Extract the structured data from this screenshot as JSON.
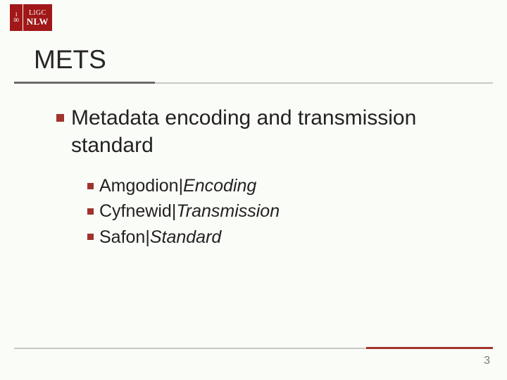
{
  "logo": {
    "left_top": "1",
    "left_bottom": "00",
    "right_top": "LlGC",
    "right_bottom": "NLW"
  },
  "heading": "METS",
  "level1": {
    "text": "Metadata encoding and transmission standard"
  },
  "level2": [
    {
      "welsh": "Amgodion",
      "sep": " | ",
      "english": "Encoding"
    },
    {
      "welsh": "Cyfnewid",
      "sep": " | ",
      "english": "Transmission"
    },
    {
      "welsh": "Safon",
      "sep": " | ",
      "english": "Standard"
    }
  ],
  "page_number": "3",
  "colors": {
    "bullet": "#a0342c",
    "rule_dark": "#6a6a6a",
    "rule_light": "#c8c8c3",
    "background": "#fafcf8",
    "text": "#222222",
    "pagenum": "#7a7a76"
  }
}
